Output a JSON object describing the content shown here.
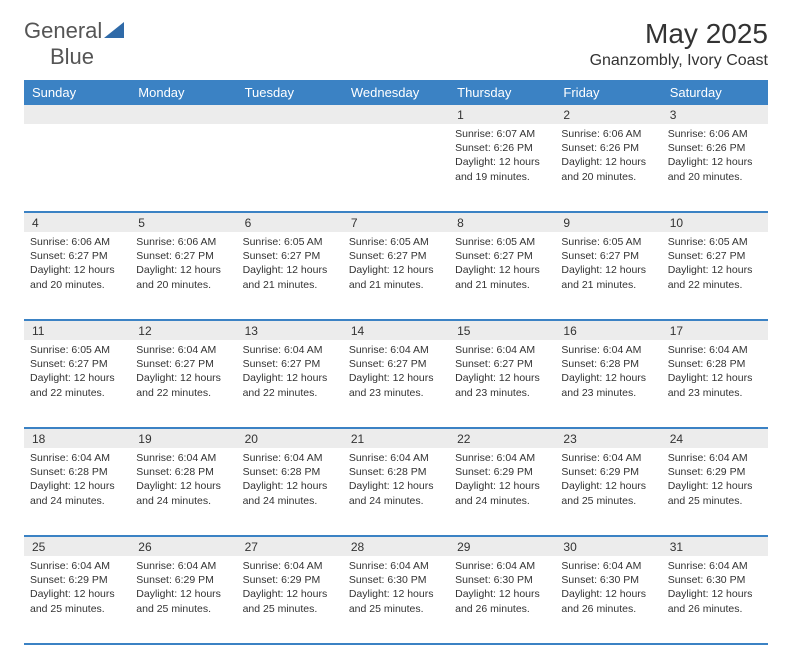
{
  "brand": {
    "part1": "General",
    "part2": "Blue"
  },
  "title": "May 2025",
  "location": "Gnanzombly, Ivory Coast",
  "colors": {
    "header_bg": "#3b82c4",
    "header_text": "#ffffff",
    "daynum_bg": "#ececec",
    "border": "#3b82c4",
    "logo_accent": "#2f6aa8"
  },
  "day_headers": [
    "Sunday",
    "Monday",
    "Tuesday",
    "Wednesday",
    "Thursday",
    "Friday",
    "Saturday"
  ],
  "weeks": [
    [
      null,
      null,
      null,
      null,
      {
        "n": "1",
        "sr": "6:07 AM",
        "ss": "6:26 PM",
        "dl": "12 hours and 19 minutes."
      },
      {
        "n": "2",
        "sr": "6:06 AM",
        "ss": "6:26 PM",
        "dl": "12 hours and 20 minutes."
      },
      {
        "n": "3",
        "sr": "6:06 AM",
        "ss": "6:26 PM",
        "dl": "12 hours and 20 minutes."
      }
    ],
    [
      {
        "n": "4",
        "sr": "6:06 AM",
        "ss": "6:27 PM",
        "dl": "12 hours and 20 minutes."
      },
      {
        "n": "5",
        "sr": "6:06 AM",
        "ss": "6:27 PM",
        "dl": "12 hours and 20 minutes."
      },
      {
        "n": "6",
        "sr": "6:05 AM",
        "ss": "6:27 PM",
        "dl": "12 hours and 21 minutes."
      },
      {
        "n": "7",
        "sr": "6:05 AM",
        "ss": "6:27 PM",
        "dl": "12 hours and 21 minutes."
      },
      {
        "n": "8",
        "sr": "6:05 AM",
        "ss": "6:27 PM",
        "dl": "12 hours and 21 minutes."
      },
      {
        "n": "9",
        "sr": "6:05 AM",
        "ss": "6:27 PM",
        "dl": "12 hours and 21 minutes."
      },
      {
        "n": "10",
        "sr": "6:05 AM",
        "ss": "6:27 PM",
        "dl": "12 hours and 22 minutes."
      }
    ],
    [
      {
        "n": "11",
        "sr": "6:05 AM",
        "ss": "6:27 PM",
        "dl": "12 hours and 22 minutes."
      },
      {
        "n": "12",
        "sr": "6:04 AM",
        "ss": "6:27 PM",
        "dl": "12 hours and 22 minutes."
      },
      {
        "n": "13",
        "sr": "6:04 AM",
        "ss": "6:27 PM",
        "dl": "12 hours and 22 minutes."
      },
      {
        "n": "14",
        "sr": "6:04 AM",
        "ss": "6:27 PM",
        "dl": "12 hours and 23 minutes."
      },
      {
        "n": "15",
        "sr": "6:04 AM",
        "ss": "6:27 PM",
        "dl": "12 hours and 23 minutes."
      },
      {
        "n": "16",
        "sr": "6:04 AM",
        "ss": "6:28 PM",
        "dl": "12 hours and 23 minutes."
      },
      {
        "n": "17",
        "sr": "6:04 AM",
        "ss": "6:28 PM",
        "dl": "12 hours and 23 minutes."
      }
    ],
    [
      {
        "n": "18",
        "sr": "6:04 AM",
        "ss": "6:28 PM",
        "dl": "12 hours and 24 minutes."
      },
      {
        "n": "19",
        "sr": "6:04 AM",
        "ss": "6:28 PM",
        "dl": "12 hours and 24 minutes."
      },
      {
        "n": "20",
        "sr": "6:04 AM",
        "ss": "6:28 PM",
        "dl": "12 hours and 24 minutes."
      },
      {
        "n": "21",
        "sr": "6:04 AM",
        "ss": "6:28 PM",
        "dl": "12 hours and 24 minutes."
      },
      {
        "n": "22",
        "sr": "6:04 AM",
        "ss": "6:29 PM",
        "dl": "12 hours and 24 minutes."
      },
      {
        "n": "23",
        "sr": "6:04 AM",
        "ss": "6:29 PM",
        "dl": "12 hours and 25 minutes."
      },
      {
        "n": "24",
        "sr": "6:04 AM",
        "ss": "6:29 PM",
        "dl": "12 hours and 25 minutes."
      }
    ],
    [
      {
        "n": "25",
        "sr": "6:04 AM",
        "ss": "6:29 PM",
        "dl": "12 hours and 25 minutes."
      },
      {
        "n": "26",
        "sr": "6:04 AM",
        "ss": "6:29 PM",
        "dl": "12 hours and 25 minutes."
      },
      {
        "n": "27",
        "sr": "6:04 AM",
        "ss": "6:29 PM",
        "dl": "12 hours and 25 minutes."
      },
      {
        "n": "28",
        "sr": "6:04 AM",
        "ss": "6:30 PM",
        "dl": "12 hours and 25 minutes."
      },
      {
        "n": "29",
        "sr": "6:04 AM",
        "ss": "6:30 PM",
        "dl": "12 hours and 26 minutes."
      },
      {
        "n": "30",
        "sr": "6:04 AM",
        "ss": "6:30 PM",
        "dl": "12 hours and 26 minutes."
      },
      {
        "n": "31",
        "sr": "6:04 AM",
        "ss": "6:30 PM",
        "dl": "12 hours and 26 minutes."
      }
    ]
  ],
  "labels": {
    "sunrise": "Sunrise: ",
    "sunset": "Sunset: ",
    "daylight": "Daylight: "
  }
}
